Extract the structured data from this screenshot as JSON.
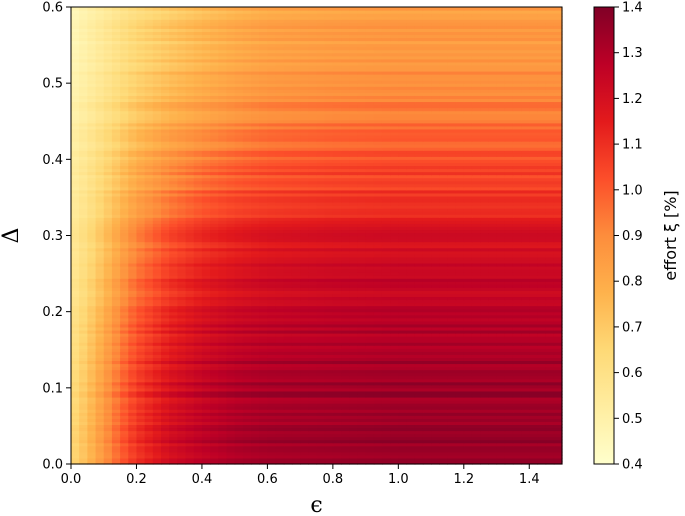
{
  "chart_data": {
    "type": "heatmap",
    "title": "",
    "xlabel": "ϵ",
    "ylabel": "Δ",
    "xlim": [
      0.0,
      1.5
    ],
    "ylim": [
      0.0,
      0.6
    ],
    "x_ticks": [
      "0.0",
      "0.2",
      "0.4",
      "0.6",
      "0.8",
      "1.0",
      "1.2",
      "1.4"
    ],
    "y_ticks": [
      "0.0",
      "0.1",
      "0.2",
      "0.3",
      "0.4",
      "0.5",
      "0.6"
    ],
    "x": [
      0.0,
      0.05,
      0.1,
      0.15,
      0.2,
      0.3,
      0.4,
      0.5,
      0.6,
      0.8,
      1.0,
      1.2,
      1.5
    ],
    "y": [
      0.0,
      0.05,
      0.1,
      0.15,
      0.2,
      0.25,
      0.3,
      0.35,
      0.4,
      0.45,
      0.5,
      0.55,
      0.6
    ],
    "z": [
      [
        0.65,
        0.75,
        0.88,
        1.0,
        1.1,
        1.22,
        1.28,
        1.32,
        1.34,
        1.35,
        1.36,
        1.36,
        1.36
      ],
      [
        0.64,
        0.74,
        0.87,
        0.99,
        1.09,
        1.21,
        1.27,
        1.31,
        1.33,
        1.34,
        1.35,
        1.35,
        1.35
      ],
      [
        0.62,
        0.72,
        0.85,
        0.97,
        1.07,
        1.19,
        1.26,
        1.3,
        1.32,
        1.33,
        1.34,
        1.34,
        1.34
      ],
      [
        0.6,
        0.7,
        0.82,
        0.94,
        1.04,
        1.16,
        1.23,
        1.27,
        1.29,
        1.3,
        1.31,
        1.31,
        1.31
      ],
      [
        0.58,
        0.67,
        0.78,
        0.9,
        1.0,
        1.12,
        1.19,
        1.23,
        1.25,
        1.27,
        1.28,
        1.28,
        1.28
      ],
      [
        0.56,
        0.64,
        0.74,
        0.85,
        0.95,
        1.07,
        1.14,
        1.18,
        1.21,
        1.23,
        1.24,
        1.24,
        1.24
      ],
      [
        0.55,
        0.62,
        0.71,
        0.81,
        0.9,
        1.02,
        1.09,
        1.13,
        1.16,
        1.18,
        1.19,
        1.19,
        1.19
      ],
      [
        0.53,
        0.59,
        0.67,
        0.75,
        0.83,
        0.93,
        1.0,
        1.04,
        1.06,
        1.08,
        1.09,
        1.09,
        1.09
      ],
      [
        0.52,
        0.57,
        0.64,
        0.71,
        0.78,
        0.87,
        0.93,
        0.97,
        1.0,
        1.02,
        1.03,
        1.03,
        1.03
      ],
      [
        0.5,
        0.55,
        0.61,
        0.67,
        0.73,
        0.81,
        0.86,
        0.9,
        0.93,
        0.95,
        0.96,
        0.96,
        0.96
      ],
      [
        0.48,
        0.53,
        0.58,
        0.64,
        0.69,
        0.76,
        0.81,
        0.85,
        0.88,
        0.9,
        0.91,
        0.91,
        0.91
      ],
      [
        0.46,
        0.51,
        0.56,
        0.61,
        0.66,
        0.72,
        0.77,
        0.81,
        0.84,
        0.86,
        0.87,
        0.87,
        0.87
      ],
      [
        0.45,
        0.5,
        0.54,
        0.59,
        0.63,
        0.69,
        0.74,
        0.78,
        0.81,
        0.83,
        0.84,
        0.84,
        0.84
      ]
    ],
    "colorbar": {
      "label": "effort ξ [%]",
      "vmin": 0.4,
      "vmax": 1.4,
      "ticks": [
        "0.4",
        "0.5",
        "0.6",
        "0.7",
        "0.8",
        "0.9",
        "1.0",
        "1.1",
        "1.2",
        "1.3",
        "1.4"
      ],
      "colormap": [
        "#ffffcc",
        "#ffeda0",
        "#fed976",
        "#feb24c",
        "#fd8d3c",
        "#fc4e2a",
        "#e31a1c",
        "#bd0026",
        "#800026"
      ]
    },
    "grid": false,
    "legend": "none"
  }
}
